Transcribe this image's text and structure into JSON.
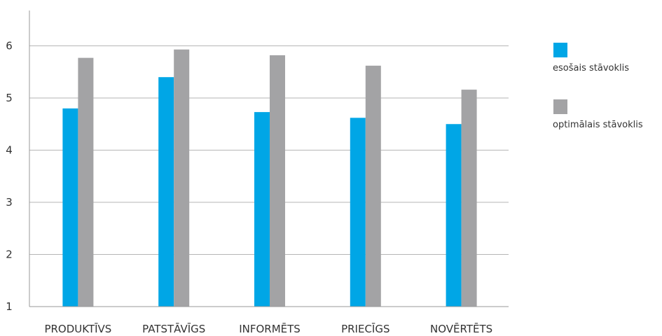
{
  "chart_data": {
    "type": "bar",
    "categories": [
      "PRODUKTĪVS",
      "PATSTĀVĪGS",
      "INFORMĒTS",
      "PRIECĪGS",
      "NOVĒRTĒTS"
    ],
    "series": [
      {
        "name": "esošais stāvoklis",
        "values": [
          4.8,
          5.4,
          4.73,
          4.62,
          4.5
        ],
        "color": "#00a6e6"
      },
      {
        "name": "optimālais stāvoklis",
        "values": [
          5.77,
          5.93,
          5.82,
          5.62,
          5.16
        ],
        "color": "#a3a3a5"
      }
    ],
    "yticks": [
      1,
      2,
      3,
      4,
      5,
      6
    ],
    "ylim": [
      1,
      7
    ],
    "grid": true,
    "legend": "right",
    "title": "",
    "xlabel": "",
    "ylabel": ""
  }
}
